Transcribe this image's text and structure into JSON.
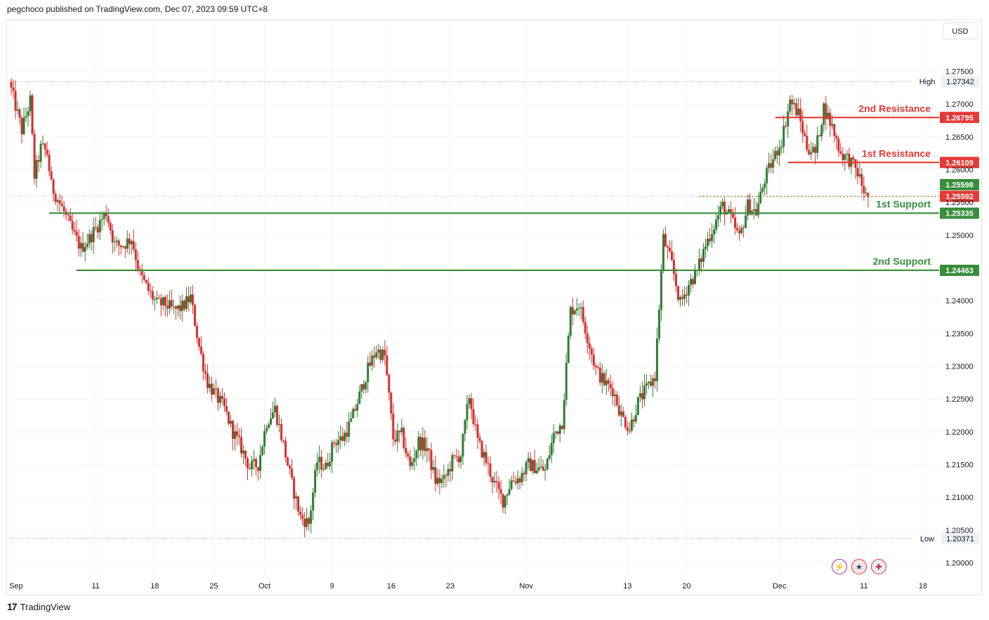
{
  "header": {
    "published": "pegchoco published on TradingView.com, Dec 07, 2023 09:59 UTC+8"
  },
  "currency_label": "USD",
  "brand": {
    "logo": "17",
    "name": "TradingView"
  },
  "colors": {
    "up": "#2e7d32",
    "down": "#d32f2f",
    "support": "#388e3c",
    "resistance": "#e53935",
    "grid": "#f0f3fa",
    "axis_text": "#131722"
  },
  "icons": [
    "lightning-icon",
    "us-flag-icon",
    "uk-flag-icon"
  ],
  "chart_data": {
    "type": "candlestick",
    "symbol_quote": "USD",
    "ylim": [
      1.196,
      1.279
    ],
    "y_ticks": [
      "1.27500",
      "1.27000",
      "1.26500",
      "1.26000",
      "1.25500",
      "1.25000",
      "1.24000",
      "1.23500",
      "1.23000",
      "1.22500",
      "1.22000",
      "1.21500",
      "1.21000",
      "1.20500",
      "1.20000"
    ],
    "x_labels": [
      {
        "label": "Sep",
        "day": 0
      },
      {
        "label": "11",
        "day": 10
      },
      {
        "label": "18",
        "day": 17
      },
      {
        "label": "25",
        "day": 24
      },
      {
        "label": "Oct",
        "day": 30
      },
      {
        "label": "9",
        "day": 38
      },
      {
        "label": "16",
        "day": 45
      },
      {
        "label": "23",
        "day": 52
      },
      {
        "label": "Nov",
        "day": 61
      },
      {
        "label": "13",
        "day": 73
      },
      {
        "label": "20",
        "day": 80
      },
      {
        "label": "Dec",
        "day": 91
      },
      {
        "label": "11",
        "day": 101
      },
      {
        "label": "18",
        "day": 108
      }
    ],
    "x_range_days": [
      0,
      111
    ],
    "high": {
      "label": "High",
      "value": "1.27342",
      "price": 1.27342,
      "day_start": 0
    },
    "low": {
      "label": "Low",
      "value": "1.20371",
      "price": 1.20371,
      "day_start": 0
    },
    "levels": [
      {
        "name": "2nd Resistance",
        "value": "1.26795",
        "price": 1.26795,
        "kind": "resistance",
        "day_start": 90.5
      },
      {
        "name": "1st Resistance",
        "value": "1.26109",
        "price": 1.26109,
        "kind": "resistance",
        "day_start": 92
      },
      {
        "name": "1st Support",
        "value": "1.25335",
        "price": 1.25335,
        "kind": "support",
        "day_start": 4.5
      },
      {
        "name": "2nd Support",
        "value": "1.24463",
        "price": 1.24463,
        "kind": "support",
        "day_start": 7.7
      }
    ],
    "price_tags": [
      {
        "value": "1.25598",
        "price": 1.25598,
        "kind": "up"
      },
      {
        "value": "1.25592",
        "price": 1.25592,
        "kind": "down"
      }
    ],
    "current_price_line": {
      "price": 1.25592,
      "day_start": 81.5
    },
    "path_points": [
      [
        0,
        1.2734
      ],
      [
        1.5,
        1.266
      ],
      [
        2.5,
        1.2705
      ],
      [
        3,
        1.259
      ],
      [
        3.8,
        1.2635
      ],
      [
        4.5,
        1.2625
      ],
      [
        5,
        1.2575
      ],
      [
        6.5,
        1.2535
      ],
      [
        7.5,
        1.2505
      ],
      [
        8.5,
        1.248
      ],
      [
        9.5,
        1.2495
      ],
      [
        10.5,
        1.2515
      ],
      [
        11.5,
        1.2535
      ],
      [
        12.5,
        1.2485
      ],
      [
        13.5,
        1.2485
      ],
      [
        14.5,
        1.2495
      ],
      [
        15.5,
        1.244
      ],
      [
        16.5,
        1.2415
      ],
      [
        17.5,
        1.2395
      ],
      [
        18.5,
        1.2395
      ],
      [
        19.5,
        1.2385
      ],
      [
        20.5,
        1.239
      ],
      [
        21.5,
        1.2405
      ],
      [
        22.5,
        1.233
      ],
      [
        23.5,
        1.2275
      ],
      [
        24.5,
        1.2255
      ],
      [
        25.5,
        1.2235
      ],
      [
        26.5,
        1.22
      ],
      [
        27.5,
        1.2175
      ],
      [
        28.5,
        1.2145
      ],
      [
        29.5,
        1.215
      ],
      [
        30.5,
        1.2215
      ],
      [
        31.5,
        1.2235
      ],
      [
        32.5,
        1.218
      ],
      [
        33.5,
        1.212
      ],
      [
        34.5,
        1.207
      ],
      [
        35.5,
        1.206
      ],
      [
        36.5,
        1.2155
      ],
      [
        37.5,
        1.2145
      ],
      [
        38.5,
        1.2185
      ],
      [
        39.5,
        1.219
      ],
      [
        40.5,
        1.2215
      ],
      [
        41.5,
        1.2255
      ],
      [
        42.5,
        1.2295
      ],
      [
        43.5,
        1.2325
      ],
      [
        44.5,
        1.2315
      ],
      [
        45.5,
        1.219
      ],
      [
        46.5,
        1.2195
      ],
      [
        47.5,
        1.2145
      ],
      [
        48.5,
        1.2185
      ],
      [
        49.5,
        1.2175
      ],
      [
        50.5,
        1.2125
      ],
      [
        51.5,
        1.2125
      ],
      [
        52.5,
        1.2155
      ],
      [
        53.5,
        1.2165
      ],
      [
        54.5,
        1.2255
      ],
      [
        55.5,
        1.2185
      ],
      [
        56.5,
        1.2155
      ],
      [
        57.5,
        1.212
      ],
      [
        58.5,
        1.2095
      ],
      [
        59.5,
        1.2125
      ],
      [
        60.5,
        1.213
      ],
      [
        61.5,
        1.215
      ],
      [
        62.5,
        1.2145
      ],
      [
        63.5,
        1.214
      ],
      [
        64.5,
        1.2195
      ],
      [
        65.5,
        1.2215
      ],
      [
        66.5,
        1.2385
      ],
      [
        67.5,
        1.2395
      ],
      [
        68.5,
        1.2345
      ],
      [
        69.5,
        1.2295
      ],
      [
        70.5,
        1.2275
      ],
      [
        71.5,
        1.2265
      ],
      [
        72.5,
        1.2225
      ],
      [
        73.5,
        1.2205
      ],
      [
        74.5,
        1.2245
      ],
      [
        75.5,
        1.2265
      ],
      [
        76.5,
        1.2285
      ],
      [
        77.5,
        1.2495
      ],
      [
        78.5,
        1.2455
      ],
      [
        79.5,
        1.2395
      ],
      [
        80.5,
        1.2425
      ],
      [
        81.5,
        1.2445
      ],
      [
        82.5,
        1.2485
      ],
      [
        83.5,
        1.2515
      ],
      [
        84.5,
        1.2545
      ],
      [
        85.5,
        1.2525
      ],
      [
        86.5,
        1.2495
      ],
      [
        87.5,
        1.2545
      ],
      [
        88.5,
        1.2535
      ],
      [
        89.5,
        1.2585
      ],
      [
        90.5,
        1.2615
      ],
      [
        91.5,
        1.2645
      ],
      [
        92.5,
        1.2705
      ],
      [
        93.5,
        1.2685
      ],
      [
        94.5,
        1.2635
      ],
      [
        95.5,
        1.2625
      ],
      [
        96.5,
        1.2695
      ],
      [
        97.5,
        1.2665
      ],
      [
        98.5,
        1.2625
      ],
      [
        99.5,
        1.2615
      ],
      [
        100.5,
        1.2595
      ],
      [
        101.5,
        1.2559
      ]
    ]
  }
}
